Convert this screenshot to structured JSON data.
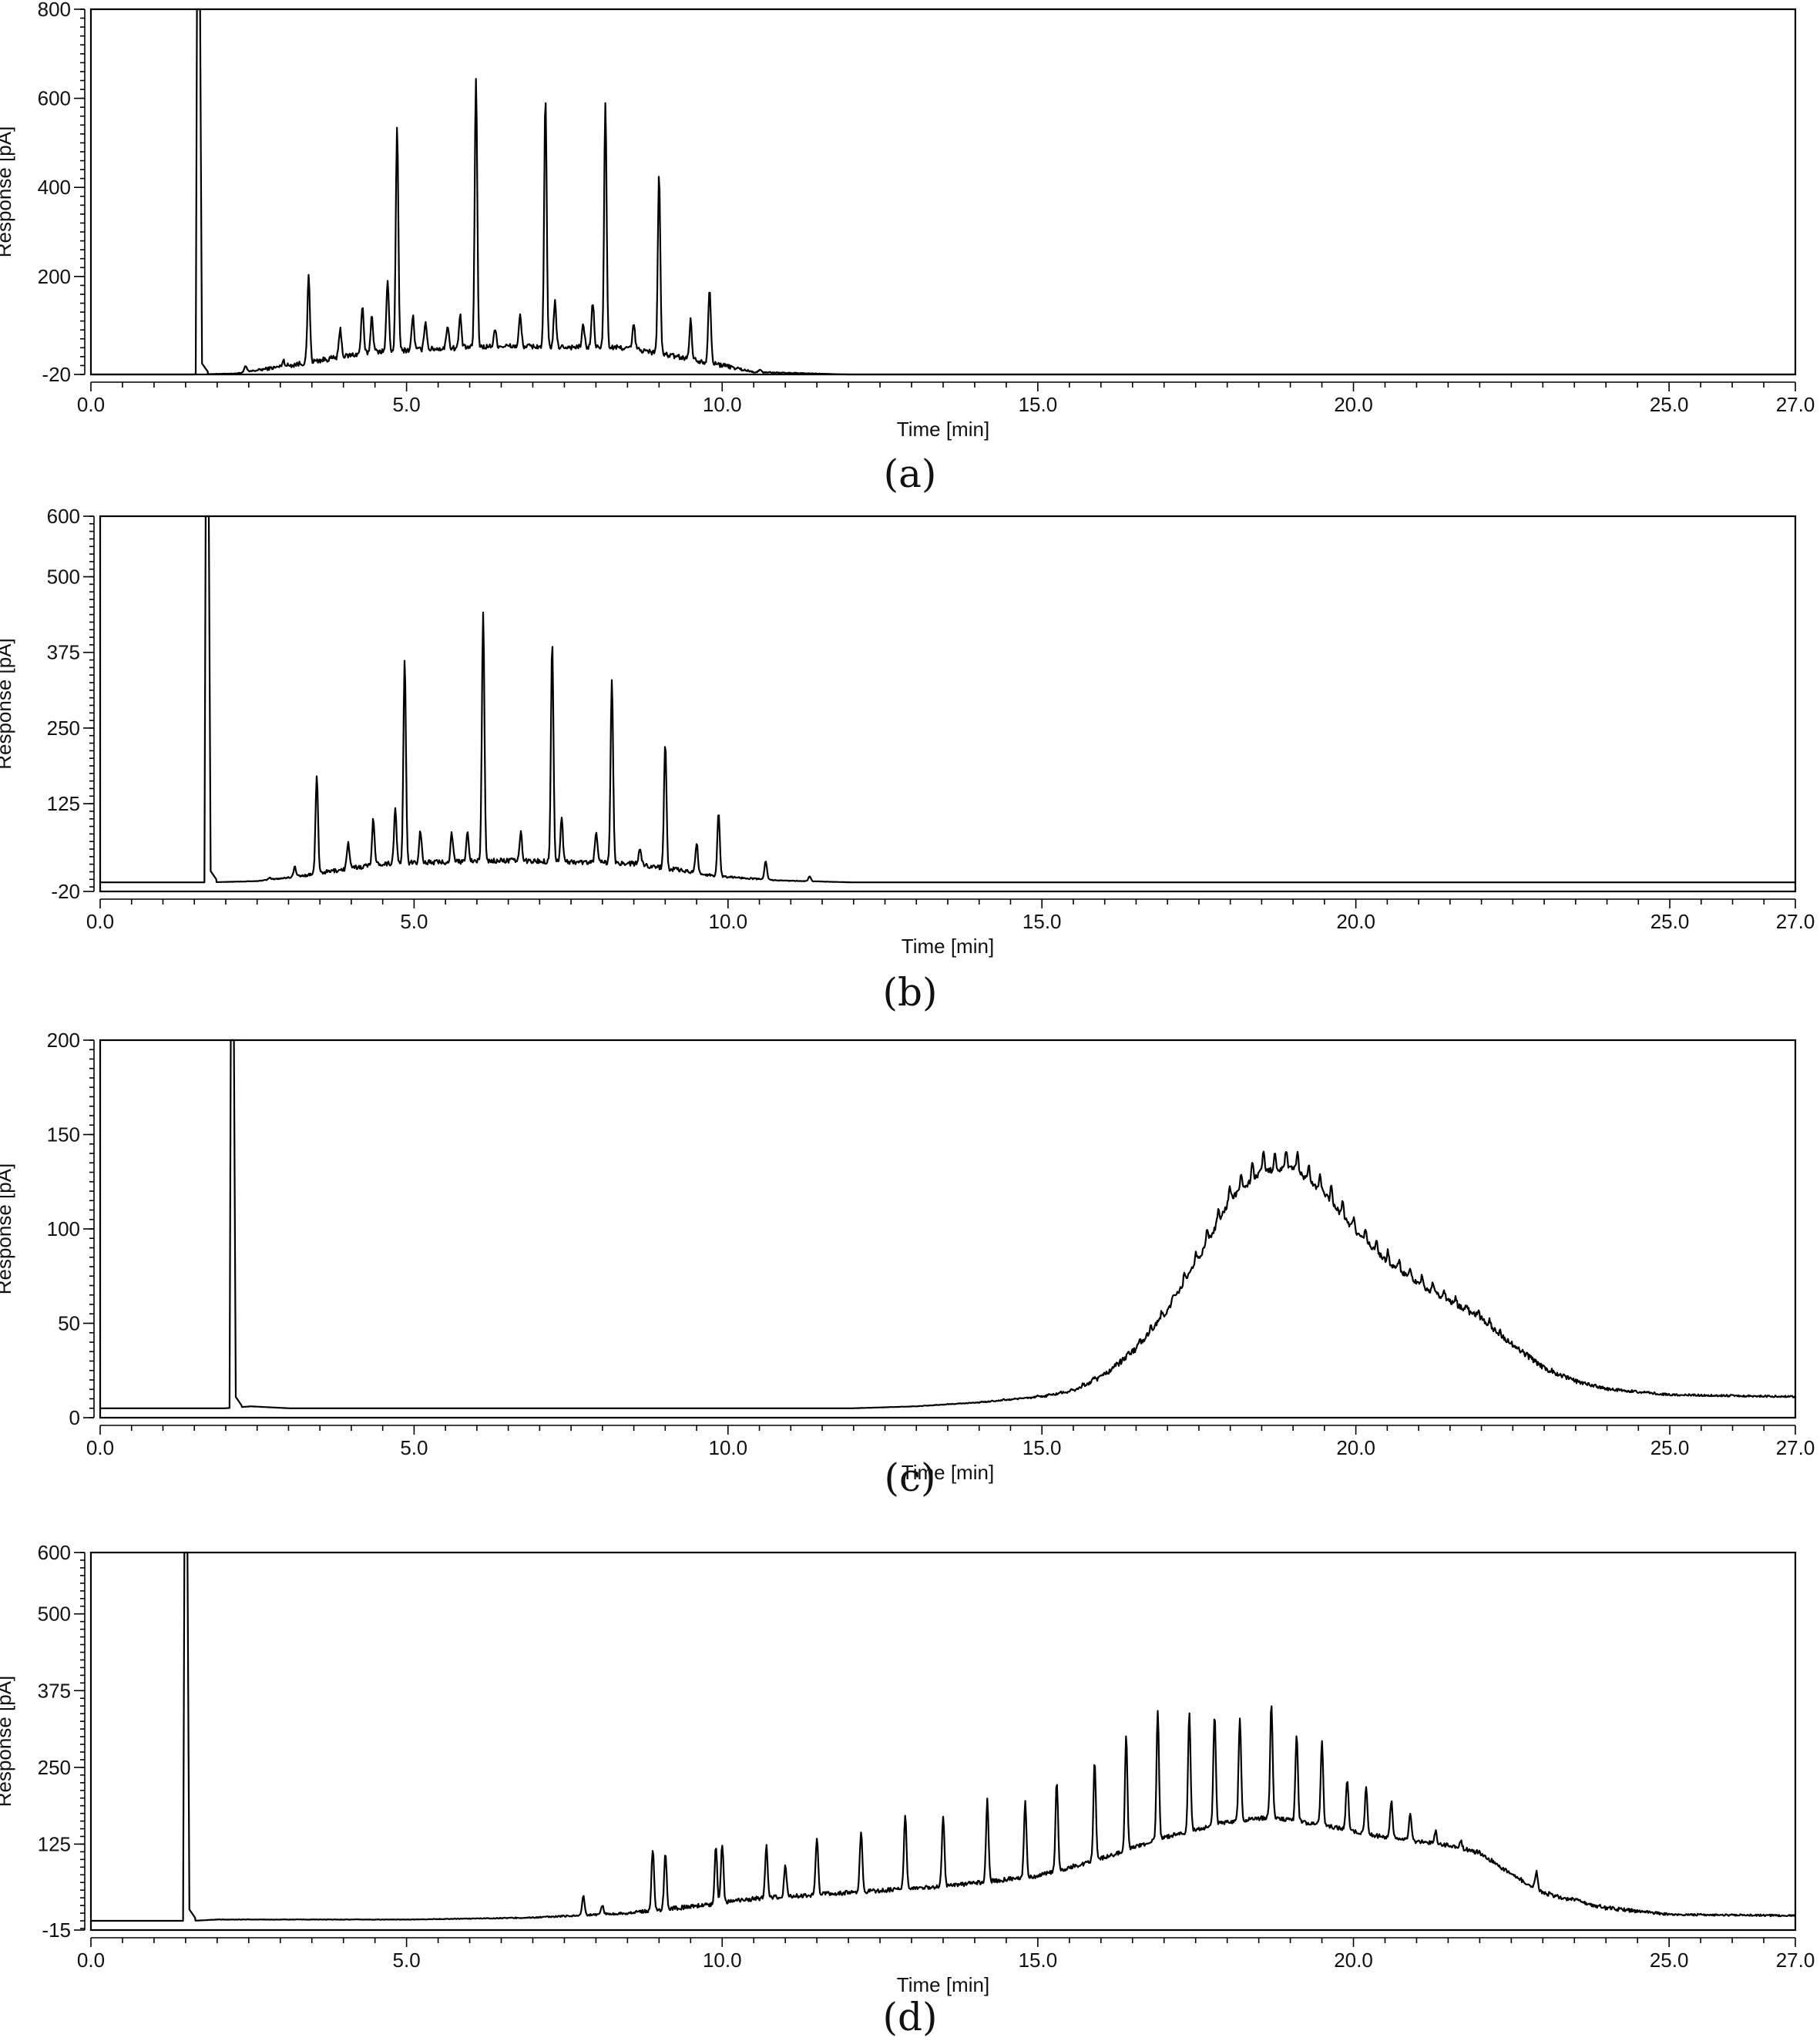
{
  "figure": {
    "panels": [
      {
        "caption": "(a)"
      },
      {
        "caption": "(b)"
      },
      {
        "caption": "(c)"
      },
      {
        "caption": "(d)"
      }
    ]
  },
  "chart_data": [
    {
      "type": "line",
      "panel": "(a)",
      "xlabel": "Time [min]",
      "ylabel": "Response [pA]",
      "xlim": [
        0,
        27
      ],
      "ylim": [
        -20,
        800
      ],
      "xticks": [
        "0.0",
        "5.0",
        "10.0",
        "15.0",
        "20.0",
        "25.0",
        "27.0"
      ],
      "yticks": [
        "800",
        "600",
        "400",
        "200",
        "-20"
      ],
      "baseline": -20,
      "solvent_peak": {
        "x": 1.7,
        "y": 800
      },
      "profile": [
        [
          0,
          -20
        ],
        [
          1.6,
          -20
        ],
        [
          2.3,
          -18
        ],
        [
          3.2,
          0
        ],
        [
          4.5,
          30
        ],
        [
          6.5,
          42
        ],
        [
          8.5,
          38
        ],
        [
          9.8,
          5
        ],
        [
          10.5,
          -15
        ],
        [
          12,
          -20
        ],
        [
          27,
          -20
        ]
      ],
      "noise": 12,
      "peaks": [
        {
          "x": 2.45,
          "y": -2
        },
        {
          "x": 3.05,
          "y": 10
        },
        {
          "x": 3.45,
          "y": 200
        },
        {
          "x": 3.95,
          "y": 80
        },
        {
          "x": 4.3,
          "y": 130
        },
        {
          "x": 4.45,
          "y": 110
        },
        {
          "x": 4.7,
          "y": 190
        },
        {
          "x": 4.85,
          "y": 530
        },
        {
          "x": 5.1,
          "y": 110
        },
        {
          "x": 5.3,
          "y": 100
        },
        {
          "x": 5.65,
          "y": 90
        },
        {
          "x": 5.85,
          "y": 110
        },
        {
          "x": 6.1,
          "y": 645
        },
        {
          "x": 6.4,
          "y": 80
        },
        {
          "x": 6.8,
          "y": 110
        },
        {
          "x": 7.2,
          "y": 600
        },
        {
          "x": 7.35,
          "y": 140
        },
        {
          "x": 7.8,
          "y": 90
        },
        {
          "x": 7.95,
          "y": 140
        },
        {
          "x": 8.15,
          "y": 585
        },
        {
          "x": 8.6,
          "y": 90
        },
        {
          "x": 9.0,
          "y": 425
        },
        {
          "x": 9.5,
          "y": 100
        },
        {
          "x": 9.8,
          "y": 175
        },
        {
          "x": 10.6,
          "y": -10
        }
      ]
    },
    {
      "type": "line",
      "panel": "(b)",
      "xlabel": "Time [min]",
      "ylabel": "Response [pA]",
      "xlim": [
        0,
        27
      ],
      "ylim": [
        -20,
        600
      ],
      "xticks": [
        "0.0",
        "5.0",
        "10.0",
        "15.0",
        "20.0",
        "25.0",
        "27.0"
      ],
      "yticks": [
        "600",
        "500",
        "375",
        "250",
        "125",
        "-20"
      ],
      "baseline": -5,
      "solvent_peak": {
        "x": 1.7,
        "y": 600
      },
      "profile": [
        [
          0,
          -5
        ],
        [
          1.7,
          -5
        ],
        [
          2.5,
          -3
        ],
        [
          3.2,
          5
        ],
        [
          4.5,
          25
        ],
        [
          6.5,
          30
        ],
        [
          8.5,
          25
        ],
        [
          9.8,
          5
        ],
        [
          10.8,
          -2
        ],
        [
          12,
          -5
        ],
        [
          27,
          -5
        ]
      ],
      "noise": 8,
      "peaks": [
        {
          "x": 2.7,
          "y": 2
        },
        {
          "x": 3.1,
          "y": 20
        },
        {
          "x": 3.45,
          "y": 170
        },
        {
          "x": 3.95,
          "y": 60
        },
        {
          "x": 4.35,
          "y": 100
        },
        {
          "x": 4.7,
          "y": 115
        },
        {
          "x": 4.85,
          "y": 360
        },
        {
          "x": 5.1,
          "y": 80
        },
        {
          "x": 5.6,
          "y": 75
        },
        {
          "x": 5.85,
          "y": 80
        },
        {
          "x": 6.1,
          "y": 440
        },
        {
          "x": 6.7,
          "y": 75
        },
        {
          "x": 7.2,
          "y": 390
        },
        {
          "x": 7.35,
          "y": 100
        },
        {
          "x": 7.9,
          "y": 80
        },
        {
          "x": 8.15,
          "y": 330
        },
        {
          "x": 8.6,
          "y": 50
        },
        {
          "x": 9.0,
          "y": 225
        },
        {
          "x": 9.5,
          "y": 60
        },
        {
          "x": 9.85,
          "y": 110
        },
        {
          "x": 10.6,
          "y": 30
        },
        {
          "x": 11.3,
          "y": 5
        }
      ]
    },
    {
      "type": "line",
      "panel": "(c)",
      "xlabel": "Time [min]",
      "ylabel": "Response [pA]",
      "xlim": [
        0,
        27
      ],
      "ylim": [
        0,
        200
      ],
      "xticks": [
        "0.0",
        "5.0",
        "10.0",
        "15.0",
        "20.0",
        "25.0",
        "27.0"
      ],
      "yticks": [
        "200",
        "150",
        "100",
        "50",
        "0"
      ],
      "baseline": 5,
      "solvent_peak": {
        "x": 2.1,
        "y": 200
      },
      "profile": [
        [
          0,
          5
        ],
        [
          2.0,
          5
        ],
        [
          2.4,
          6
        ],
        [
          3,
          5
        ],
        [
          12,
          5
        ],
        [
          13,
          6
        ],
        [
          14,
          8
        ],
        [
          15,
          11
        ],
        [
          15.5,
          14
        ],
        [
          16,
          22
        ],
        [
          16.5,
          36
        ],
        [
          17,
          56
        ],
        [
          17.5,
          84
        ],
        [
          18,
          115
        ],
        [
          18.5,
          130
        ],
        [
          19,
          132
        ],
        [
          19.5,
          118
        ],
        [
          20,
          98
        ],
        [
          20.5,
          82
        ],
        [
          21,
          70
        ],
        [
          21.5,
          61
        ],
        [
          22,
          52
        ],
        [
          22.5,
          38
        ],
        [
          23,
          26
        ],
        [
          23.5,
          19
        ],
        [
          24,
          15
        ],
        [
          25,
          12
        ],
        [
          27,
          11
        ]
      ],
      "noise": 3,
      "comb": {
        "start": 12.5,
        "end": 22.3,
        "spacing": 0.18,
        "relative_height": 0.08
      },
      "peaks": []
    },
    {
      "type": "line",
      "panel": "(d)",
      "xlabel": "Time [min]",
      "ylabel": "Response [pA]",
      "xlim": [
        0,
        27
      ],
      "ylim": [
        -15,
        600
      ],
      "xticks": [
        "0.0",
        "5.0",
        "10.0",
        "15.0",
        "20.0",
        "25.0",
        "27.0"
      ],
      "yticks": [
        "600",
        "500",
        "375",
        "250",
        "125",
        "-15"
      ],
      "baseline": 0,
      "solvent_peak": {
        "x": 1.5,
        "y": 600
      },
      "profile": [
        [
          0,
          0
        ],
        [
          1.6,
          0
        ],
        [
          2,
          2
        ],
        [
          5,
          2
        ],
        [
          7,
          5
        ],
        [
          8.5,
          12
        ],
        [
          9.5,
          22
        ],
        [
          10.5,
          35
        ],
        [
          12,
          45
        ],
        [
          13.5,
          55
        ],
        [
          15,
          72
        ],
        [
          16,
          100
        ],
        [
          17,
          135
        ],
        [
          18,
          160
        ],
        [
          18.7,
          168
        ],
        [
          19.5,
          155
        ],
        [
          20.5,
          135
        ],
        [
          21.5,
          122
        ],
        [
          22,
          110
        ],
        [
          22.5,
          75
        ],
        [
          23,
          45
        ],
        [
          24,
          20
        ],
        [
          25,
          10
        ],
        [
          27,
          8
        ]
      ],
      "noise": 7,
      "peaks": [
        {
          "x": 7.8,
          "y": 40
        },
        {
          "x": 8.1,
          "y": 25
        },
        {
          "x": 8.9,
          "y": 115
        },
        {
          "x": 9.1,
          "y": 110
        },
        {
          "x": 9.9,
          "y": 120
        },
        {
          "x": 10.0,
          "y": 125
        },
        {
          "x": 10.7,
          "y": 120
        },
        {
          "x": 11.0,
          "y": 90
        },
        {
          "x": 11.5,
          "y": 135
        },
        {
          "x": 12.2,
          "y": 145
        },
        {
          "x": 12.9,
          "y": 170
        },
        {
          "x": 13.5,
          "y": 170
        },
        {
          "x": 14.2,
          "y": 195
        },
        {
          "x": 14.8,
          "y": 195
        },
        {
          "x": 15.3,
          "y": 225
        },
        {
          "x": 15.9,
          "y": 260
        },
        {
          "x": 16.4,
          "y": 300
        },
        {
          "x": 16.9,
          "y": 340
        },
        {
          "x": 17.4,
          "y": 340
        },
        {
          "x": 17.8,
          "y": 335
        },
        {
          "x": 18.2,
          "y": 330
        },
        {
          "x": 18.7,
          "y": 355
        },
        {
          "x": 19.1,
          "y": 300
        },
        {
          "x": 19.5,
          "y": 290
        },
        {
          "x": 19.9,
          "y": 230
        },
        {
          "x": 20.2,
          "y": 215
        },
        {
          "x": 20.6,
          "y": 195
        },
        {
          "x": 20.9,
          "y": 175
        },
        {
          "x": 21.3,
          "y": 145
        },
        {
          "x": 21.7,
          "y": 130
        },
        {
          "x": 22.9,
          "y": 80
        }
      ]
    }
  ]
}
